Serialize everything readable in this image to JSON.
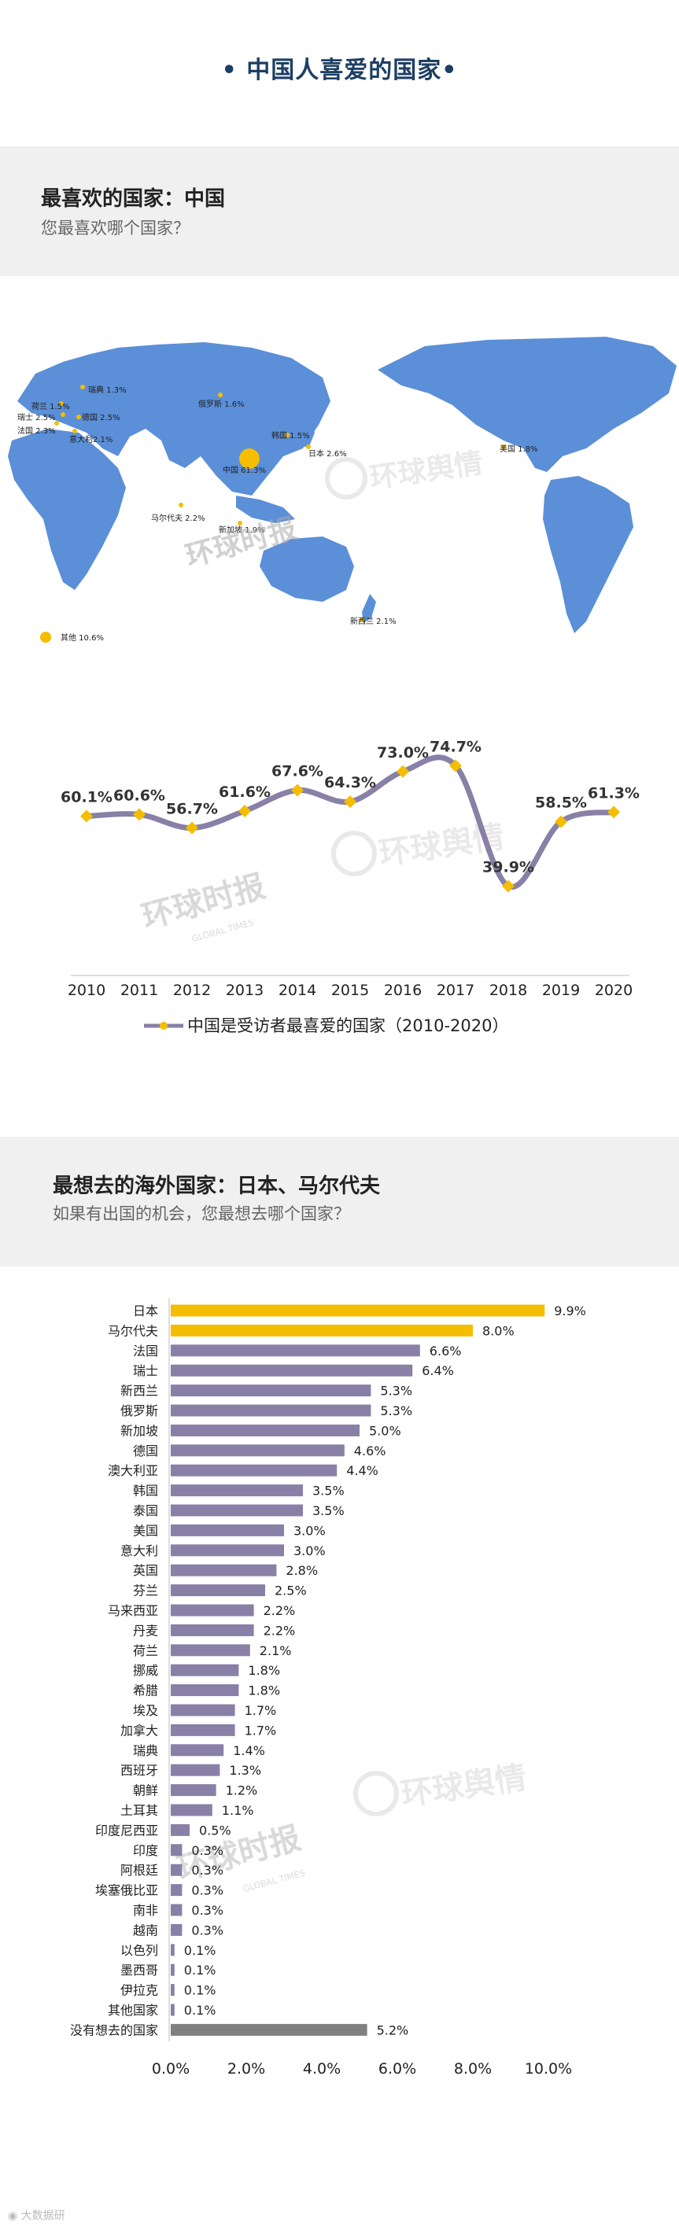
{
  "page": {
    "title": "• 中国人喜爱的国家•"
  },
  "section1": {
    "heading": "最喜欢的国家：中国",
    "subheading": "您最喜欢哪个国家？"
  },
  "section2": {
    "heading": "最想去的海外国家：日本、马尔代夫",
    "subheading": "如果有出国的机会，您最想去哪个国家？"
  },
  "watermark": {
    "newspaper": "环球时报",
    "newspaper_en": "GLOBAL TIMES",
    "brand": "环球舆情"
  },
  "footer": {
    "text": "大数据研"
  },
  "colors": {
    "navy": "#1d3f63",
    "map": "#5b8fd8",
    "gold": "#f5bd00",
    "purple": "#8880a6",
    "gray": "#808080",
    "panel": "#f0f0f0"
  },
  "map_labels": [
    {
      "text": "瑞典 1.3%"
    },
    {
      "text": "俄罗斯 1.6%"
    },
    {
      "text": "荷兰 1.5%"
    },
    {
      "text": "瑞士 2.5%"
    },
    {
      "text": "德国 2.5%"
    },
    {
      "text": "法国 2.3%"
    },
    {
      "text": "意大利2.1%"
    },
    {
      "text": "韩国 1.5%"
    },
    {
      "text": "日本 2.6%"
    },
    {
      "text": "中国 61.3%"
    },
    {
      "text": "美国 1.8%"
    },
    {
      "text": "马尔代夫 2.2%"
    },
    {
      "text": "新加坡 1.9%"
    },
    {
      "text": "新西兰 2.1%"
    },
    {
      "text": "其他 10.6%"
    }
  ],
  "chart_data": [
    {
      "type": "line",
      "title": "",
      "x": [
        "2010",
        "2011",
        "2012",
        "2013",
        "2014",
        "2015",
        "2016",
        "2017",
        "2018",
        "2019",
        "2020"
      ],
      "values": [
        60.1,
        60.6,
        56.7,
        61.6,
        67.6,
        64.3,
        73.0,
        74.7,
        39.9,
        58.5,
        61.3
      ],
      "labels": [
        "60.1%",
        "60.6%",
        "56.7%",
        "61.6%",
        "67.6%",
        "64.3%",
        "73.0%",
        "74.7%",
        "39.9%",
        "58.5%",
        "61.3%"
      ],
      "legend": "中国是受访者最喜爱的国家（2010-2020）",
      "xlabel": "",
      "ylabel": "",
      "ylim": [
        30,
        80
      ],
      "grid": false
    },
    {
      "type": "bar",
      "orientation": "horizontal",
      "categories": [
        "日本",
        "马尔代夫",
        "法国",
        "瑞士",
        "新西兰",
        "俄罗斯",
        "新加坡",
        "德国",
        "澳大利亚",
        "韩国",
        "泰国",
        "美国",
        "意大利",
        "英国",
        "芬兰",
        "马来西亚",
        "丹麦",
        "荷兰",
        "挪威",
        "希腊",
        "埃及",
        "加拿大",
        "瑞典",
        "西班牙",
        "朝鲜",
        "土耳其",
        "印度尼西亚",
        "印度",
        "阿根廷",
        "埃塞俄比亚",
        "南非",
        "越南",
        "以色列",
        "墨西哥",
        "伊拉克",
        "其他国家",
        "没有想去的国家"
      ],
      "values": [
        9.9,
        8.0,
        6.6,
        6.4,
        5.3,
        5.3,
        5.0,
        4.6,
        4.4,
        3.5,
        3.5,
        3.0,
        3.0,
        2.8,
        2.5,
        2.2,
        2.2,
        2.1,
        1.8,
        1.8,
        1.7,
        1.7,
        1.4,
        1.3,
        1.2,
        1.1,
        0.5,
        0.3,
        0.3,
        0.3,
        0.3,
        0.3,
        0.1,
        0.1,
        0.1,
        0.1,
        5.2
      ],
      "labels": [
        "9.9%",
        "8.0%",
        "6.6%",
        "6.4%",
        "5.3%",
        "5.3%",
        "5.0%",
        "4.6%",
        "4.4%",
        "3.5%",
        "3.5%",
        "3.0%",
        "3.0%",
        "2.8%",
        "2.5%",
        "2.2%",
        "2.2%",
        "2.1%",
        "1.8%",
        "1.8%",
        "1.7%",
        "1.7%",
        "1.4%",
        "1.3%",
        "1.2%",
        "1.1%",
        "0.5%",
        "0.3%",
        "0.3%",
        "0.3%",
        "0.3%",
        "0.3%",
        "0.1%",
        "0.1%",
        "0.1%",
        "0.1%",
        "5.2%"
      ],
      "highlight": [
        "gold",
        "gold",
        "purple",
        "purple",
        "purple",
        "purple",
        "purple",
        "purple",
        "purple",
        "purple",
        "purple",
        "purple",
        "purple",
        "purple",
        "purple",
        "purple",
        "purple",
        "purple",
        "purple",
        "purple",
        "purple",
        "purple",
        "purple",
        "purple",
        "purple",
        "purple",
        "purple",
        "purple",
        "purple",
        "purple",
        "purple",
        "purple",
        "purple",
        "purple",
        "purple",
        "purple",
        "gray"
      ],
      "xticks": [
        "0.0%",
        "2.0%",
        "4.0%",
        "6.0%",
        "8.0%",
        "10.0%"
      ],
      "xlim": [
        0,
        10
      ],
      "xlabel": "",
      "ylabel": "",
      "grid": false
    }
  ]
}
